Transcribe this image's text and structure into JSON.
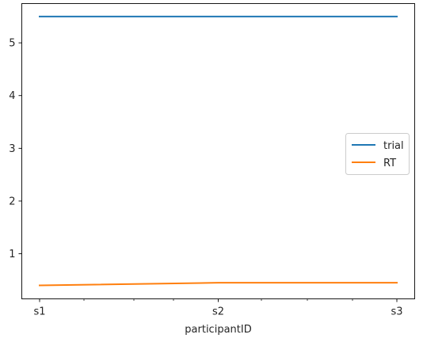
{
  "chart_data": {
    "type": "line",
    "categories": [
      "s1",
      "s2",
      "s3"
    ],
    "xlabel": "participantID",
    "ylabel": "",
    "ylim": [
      0.145,
      5.745
    ],
    "yticks": [
      1,
      2,
      3,
      4,
      5
    ],
    "series": [
      {
        "name": "trial",
        "values": [
          5.5,
          5.5,
          5.5
        ],
        "color": "#1f77b4"
      },
      {
        "name": "RT",
        "values": [
          0.4,
          0.45,
          0.45
        ],
        "color": "#ff7f0e"
      }
    ],
    "minor_x_ticks": 6,
    "legend": "center-right",
    "grid": false
  }
}
